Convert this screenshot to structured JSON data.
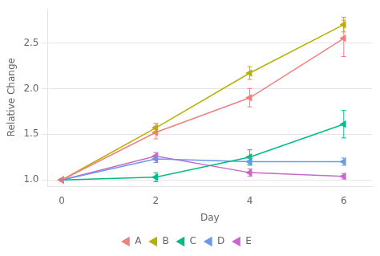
{
  "chart_data": {
    "type": "line",
    "x": [
      0,
      2,
      4,
      6
    ],
    "series": [
      {
        "name": "A",
        "color": "#F08080",
        "marker": "triangle-left",
        "values": [
          1.0,
          1.52,
          1.9,
          2.55
        ],
        "errors": [
          0.0,
          0.07,
          0.1,
          0.2
        ]
      },
      {
        "name": "B",
        "color": "#B8B000",
        "marker": "triangle-left",
        "values": [
          1.0,
          1.57,
          2.17,
          2.7
        ],
        "errors": [
          0.0,
          0.05,
          0.07,
          0.08
        ]
      },
      {
        "name": "C",
        "color": "#00BB88",
        "marker": "triangle-left",
        "values": [
          1.0,
          1.03,
          1.25,
          1.61
        ],
        "errors": [
          0.0,
          0.05,
          0.08,
          0.15
        ]
      },
      {
        "name": "D",
        "color": "#6699EE",
        "marker": "triangle-left",
        "values": [
          1.0,
          1.23,
          1.2,
          1.2
        ],
        "errors": [
          0.0,
          0.04,
          0.04,
          0.04
        ]
      },
      {
        "name": "E",
        "color": "#CC66CC",
        "marker": "triangle-left",
        "values": [
          1.0,
          1.26,
          1.08,
          1.04
        ],
        "errors": [
          0.0,
          0.04,
          0.04,
          0.03
        ]
      }
    ],
    "xlabel": "Day",
    "ylabel": "Relative Change",
    "xlim": [
      -0.3,
      6.6
    ],
    "ylim": [
      0.93,
      2.88
    ],
    "xticks": [
      0,
      2,
      4,
      6
    ],
    "yticks": [
      {
        "value": 1.0,
        "label": "1.0"
      },
      1.5,
      {
        "value": 2.0,
        "label": "2.0"
      },
      2.5
    ],
    "grid": "y",
    "legend": "bottom"
  }
}
